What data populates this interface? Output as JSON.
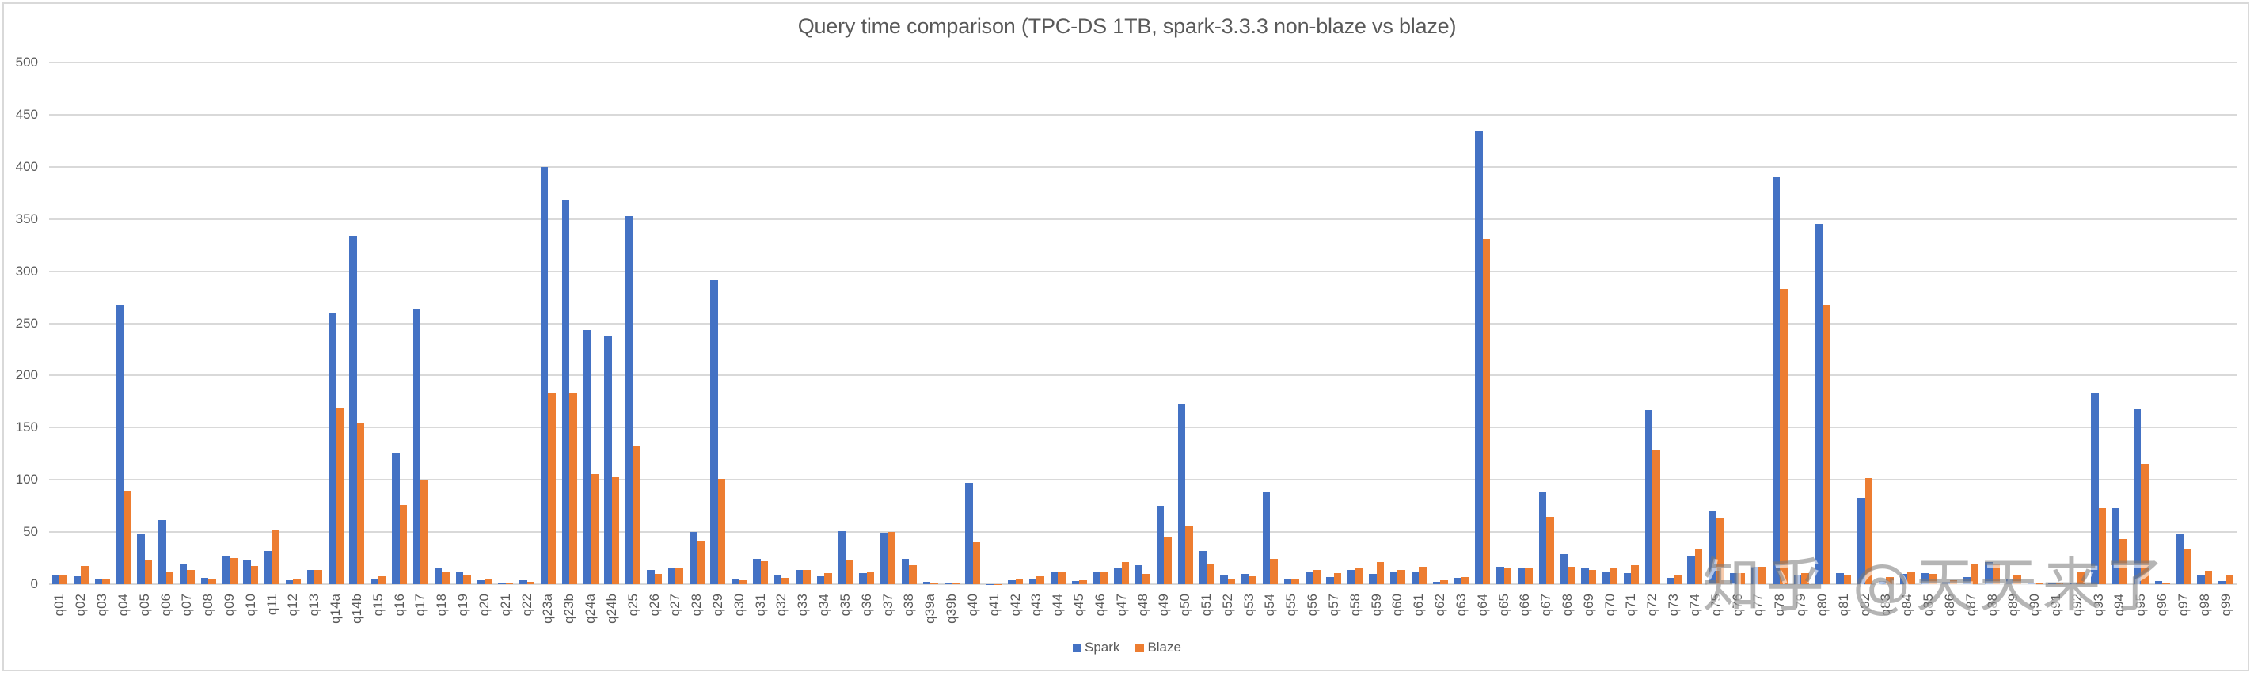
{
  "chart_data": {
    "type": "bar",
    "title": "Query time comparison (TPC-DS 1TB, spark-3.3.3 non-blaze vs blaze)",
    "xlabel": "",
    "ylabel": "",
    "ylim": [
      0,
      500
    ],
    "yticks": [
      0,
      50,
      100,
      150,
      200,
      250,
      300,
      350,
      400,
      450,
      500
    ],
    "grid": true,
    "legend_position": "bottom",
    "categories": [
      "q01",
      "q02",
      "q03",
      "q04",
      "q05",
      "q06",
      "q07",
      "q08",
      "q09",
      "q10",
      "q11",
      "q12",
      "q13",
      "q14a",
      "q14b",
      "q15",
      "q16",
      "q17",
      "q18",
      "q19",
      "q20",
      "q21",
      "q22",
      "q23a",
      "q23b",
      "q24a",
      "q24b",
      "q25",
      "q26",
      "q27",
      "q28",
      "q29",
      "q30",
      "q31",
      "q32",
      "q33",
      "q34",
      "q35",
      "q36",
      "q37",
      "q38",
      "q39a",
      "q39b",
      "q40",
      "q41",
      "q42",
      "q43",
      "q44",
      "q45",
      "q46",
      "q47",
      "q48",
      "q49",
      "q50",
      "q51",
      "q52",
      "q53",
      "q54",
      "q55",
      "q56",
      "q57",
      "q58",
      "q59",
      "q60",
      "q61",
      "q62",
      "q63",
      "q64",
      "q65",
      "q66",
      "q67",
      "q68",
      "q69",
      "q70",
      "q71",
      "q72",
      "q73",
      "q74",
      "q75",
      "q76",
      "q77",
      "q78",
      "q79",
      "q80",
      "q81",
      "q82",
      "q83",
      "q84",
      "q85",
      "q86",
      "q87",
      "q88",
      "q89",
      "q90",
      "q91",
      "q92",
      "q93",
      "q94",
      "q95",
      "q96",
      "q97",
      "q98",
      "q99"
    ],
    "series": [
      {
        "name": "Spark",
        "color": "#4472c4",
        "values": [
          8.6,
          7.8,
          5,
          268,
          47.5,
          61.6,
          20,
          6.3,
          27.5,
          23,
          32,
          4,
          14,
          260.5,
          334,
          5.5,
          126,
          264,
          15,
          12.5,
          4,
          1.5,
          4,
          400,
          368,
          243.6,
          238,
          352.5,
          13.5,
          15.5,
          50,
          291,
          4.6,
          24.5,
          9.2,
          14,
          7.9,
          50.8,
          10.7,
          49.2,
          24.5,
          2.3,
          1.5,
          97.2,
          0.3,
          3.8,
          5.4,
          11.5,
          3,
          11.5,
          15.5,
          18,
          75,
          172,
          31.5,
          8,
          10,
          88,
          4.5,
          12.5,
          7,
          13.3,
          10,
          11.5,
          11.5,
          2,
          6.4,
          434,
          17,
          15,
          88,
          29,
          15,
          12.5,
          11,
          167,
          6,
          26.5,
          70,
          11,
          16.5,
          391,
          8,
          345.5,
          10.5,
          82.5,
          3.3,
          10,
          11,
          2.3,
          7,
          21.6,
          5,
          1,
          1.5,
          1,
          184,
          73,
          168,
          3,
          48,
          8.6,
          3
        ]
      },
      {
        "name": "Blaze",
        "color": "#ed7d31",
        "values": [
          8,
          17.2,
          5.5,
          89.7,
          22.5,
          11.9,
          13.9,
          5.5,
          25.3,
          17.7,
          51.3,
          5,
          13.5,
          168.5,
          155,
          7.5,
          76,
          100,
          12,
          9,
          5,
          1,
          2,
          183,
          184,
          105.5,
          103,
          133,
          10,
          15.5,
          42,
          101,
          3.8,
          21.7,
          6.4,
          14,
          10.7,
          22.4,
          11.5,
          50,
          18.6,
          1.8,
          1.5,
          40.4,
          0.2,
          4.6,
          7.9,
          11.5,
          3.8,
          12.2,
          21.5,
          10,
          45,
          56,
          20,
          5,
          7.5,
          24.5,
          4.5,
          13.3,
          10.7,
          16.3,
          21,
          13.3,
          17,
          3.8,
          7,
          331,
          16,
          15.5,
          64.5,
          17,
          13.5,
          15.5,
          18.5,
          128,
          9,
          34,
          63,
          11,
          17,
          283,
          10.5,
          268,
          8,
          102,
          7,
          11.5,
          10,
          3.6,
          20,
          20,
          9,
          1,
          1,
          12,
          72.5,
          43,
          115.5,
          0.5,
          34,
          13,
          8
        ]
      }
    ]
  },
  "legend": {
    "items": [
      {
        "label": "Spark",
        "color": "#4472c4"
      },
      {
        "label": "Blaze",
        "color": "#ed7d31"
      }
    ]
  },
  "watermark": {
    "text": "知乎 @天天来了"
  }
}
